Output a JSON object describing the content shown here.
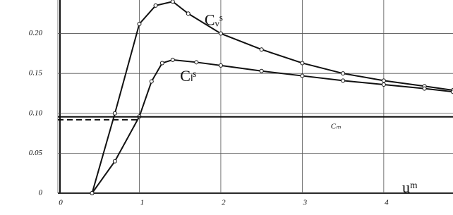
{
  "chart_data": {
    "type": "line",
    "x_label": "uᵐ",
    "xlim": [
      0,
      4.85
    ],
    "xticks": [
      0,
      1,
      2,
      3,
      4
    ],
    "ylim": [
      0,
      0.242
    ],
    "yticks": [
      0,
      0.05,
      {
        "value": 0.1,
        "label": "0.10"
      },
      0.15,
      {
        "value": 0.2,
        "label": "0.20"
      }
    ],
    "grid": true,
    "series": [
      {
        "name": "Cᵥˢ",
        "color": "#111111",
        "line_style": "solid",
        "markers": true,
        "x": [
          0.42,
          0.7,
          1.0,
          1.2,
          1.41,
          1.6,
          2.0,
          2.5,
          3.0,
          3.5,
          4.0,
          4.5,
          4.85
        ],
        "values": [
          0,
          0.1,
          0.212,
          0.235,
          0.24,
          0.225,
          0.2,
          0.18,
          0.163,
          0.15,
          0.141,
          0.134,
          0.129
        ]
      },
      {
        "name": "Cₗˢ",
        "color": "#111111",
        "line_style": "solid",
        "markers": true,
        "x": [
          0.42,
          0.7,
          1.0,
          1.15,
          1.28,
          1.41,
          1.7,
          2.0,
          2.5,
          3.0,
          3.5,
          4.0,
          4.5,
          4.85
        ],
        "values": [
          0,
          0.04,
          0.096,
          0.14,
          0.163,
          0.167,
          0.164,
          0.16,
          0.153,
          0.147,
          0.141,
          0.136,
          0.131,
          0.127
        ]
      },
      {
        "name": "Cₘ",
        "color": "#111111",
        "line_style": "solid",
        "markers": false,
        "x": [
          0,
          4.85
        ],
        "values": [
          0.0956,
          0.0956
        ]
      },
      {
        "color": "#111111",
        "line_style": "dashed",
        "markers": false,
        "x": [
          0,
          1.0
        ],
        "values": [
          0.092,
          0.092
        ]
      }
    ]
  }
}
